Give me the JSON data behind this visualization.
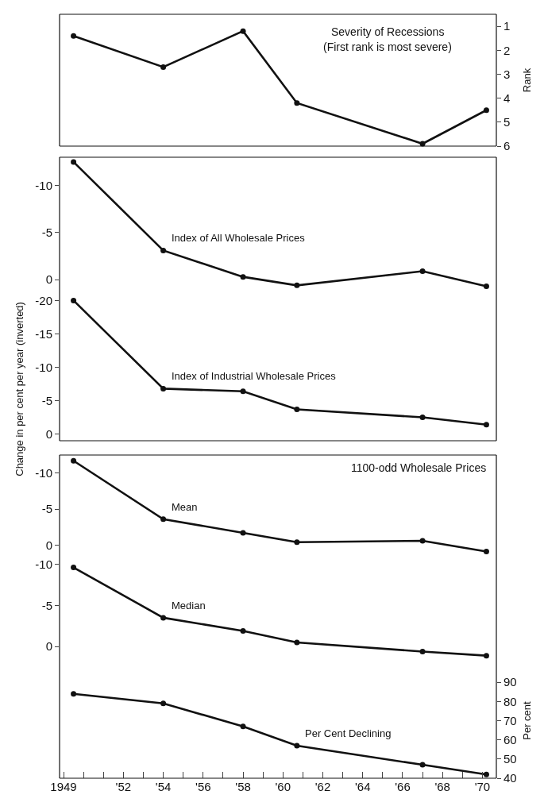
{
  "chart_data": [
    {
      "type": "line",
      "title": "Severity of Recessions",
      "subtitle": "(First rank is most severe)",
      "ylabel": "Rank",
      "x": [
        1949.5,
        1954,
        1958,
        1960.7,
        1967,
        1970.2
      ],
      "xlim": [
        1948.8,
        1970.7
      ],
      "ylim": [
        6,
        0.5
      ],
      "yticks": [
        1,
        2,
        3,
        4,
        5,
        6
      ],
      "tick_labels": "y",
      "marker": "circle",
      "line_style": "solid",
      "grid": false,
      "legend": false,
      "series": [
        {
          "color": "#111111",
          "values": [
            1.4,
            2.7,
            1.2,
            4.2,
            5.9,
            4.5
          ]
        }
      ]
    },
    {
      "type": "line",
      "x": [
        1949.5,
        1954,
        1958,
        1960.7,
        1967,
        1970.2
      ],
      "xlim": [
        1948.8,
        1970.7
      ],
      "ylim": [
        1.5,
        -13
      ],
      "yticks": [
        -10,
        -5,
        0
      ],
      "tick_labels": "y",
      "marker": "circle",
      "line_style": "solid",
      "grid": false,
      "legend": false,
      "series": [
        {
          "name": "Index of All Wholesale Prices",
          "color": "#111111",
          "values": [
            -12.5,
            -3.1,
            -0.3,
            0.6,
            -0.9,
            0.7
          ]
        }
      ]
    },
    {
      "type": "line",
      "ylabel": "Change in per cent per year (inverted)",
      "x": [
        1949.5,
        1954,
        1958,
        1960.7,
        1967,
        1970.2
      ],
      "xlim": [
        1948.8,
        1970.7
      ],
      "ylim": [
        1,
        -21
      ],
      "yticks": [
        -20,
        -15,
        -10,
        -5,
        0
      ],
      "tick_labels": "y",
      "marker": "circle",
      "line_style": "solid",
      "grid": false,
      "legend": false,
      "series": [
        {
          "name": "Index of Industrial Wholesale Prices",
          "color": "#111111",
          "values": [
            -20,
            -6.8,
            -6.4,
            -3.7,
            -2.5,
            -1.4
          ]
        }
      ]
    },
    {
      "type": "line",
      "title": "1100-odd Wholesale Prices",
      "x": [
        1949.5,
        1954,
        1958,
        1960.7,
        1967,
        1970.2
      ],
      "xlim": [
        1948.8,
        1970.7
      ],
      "ylim": [
        1.5,
        -12.5
      ],
      "yticks": [
        -10,
        -5,
        0
      ],
      "tick_labels": "y",
      "marker": "circle",
      "line_style": "solid",
      "grid": false,
      "legend": false,
      "series": [
        {
          "name": "Mean",
          "color": "#111111",
          "values": [
            -11.7,
            -3.6,
            -1.7,
            -0.4,
            -0.6,
            0.9
          ]
        }
      ]
    },
    {
      "type": "line",
      "x": [
        1949.5,
        1954,
        1958,
        1960.7,
        1967,
        1970.2
      ],
      "xlim": [
        1948.8,
        1970.7
      ],
      "ylim": [
        2,
        -11
      ],
      "yticks": [
        -10,
        -5,
        0
      ],
      "tick_labels": "y",
      "marker": "circle",
      "line_style": "solid",
      "grid": false,
      "legend": false,
      "series": [
        {
          "name": "Median",
          "color": "#111111",
          "values": [
            -9.6,
            -3.5,
            -1.9,
            -0.5,
            0.6,
            1.1
          ]
        }
      ]
    },
    {
      "type": "line",
      "ylabel": "Per cent",
      "x": [
        1949.5,
        1954,
        1958,
        1960.7,
        1967,
        1970.2
      ],
      "xlim": [
        1948.8,
        1970.7
      ],
      "xticks": [
        {
          "value": 1949,
          "label": "1949"
        },
        {
          "value": 1950,
          "label": null
        },
        {
          "value": 1951,
          "label": null
        },
        {
          "value": 1952,
          "label": "'52"
        },
        {
          "value": 1953,
          "label": null
        },
        {
          "value": 1954,
          "label": "'54"
        },
        {
          "value": 1955,
          "label": null
        },
        {
          "value": 1956,
          "label": "'56"
        },
        {
          "value": 1957,
          "label": null
        },
        {
          "value": 1958,
          "label": "'58"
        },
        {
          "value": 1959,
          "label": null
        },
        {
          "value": 1960,
          "label": "'60"
        },
        {
          "value": 1961,
          "label": null
        },
        {
          "value": 1962,
          "label": "'62"
        },
        {
          "value": 1963,
          "label": null
        },
        {
          "value": 1964,
          "label": "'64"
        },
        {
          "value": 1965,
          "label": null
        },
        {
          "value": 1966,
          "label": "'66"
        },
        {
          "value": 1967,
          "label": null
        },
        {
          "value": 1968,
          "label": "'68"
        },
        {
          "value": 1969,
          "label": null
        },
        {
          "value": 1970,
          "label": "'70"
        }
      ],
      "ylim": [
        40,
        100
      ],
      "yticks": [
        40,
        50,
        60,
        70,
        80,
        90
      ],
      "marker": "circle",
      "line_style": "solid",
      "grid": false,
      "legend": false,
      "series": [
        {
          "name": "Per Cent Declining",
          "color": "#111111",
          "values": [
            84,
            79,
            67,
            57,
            47,
            42
          ]
        }
      ]
    }
  ]
}
